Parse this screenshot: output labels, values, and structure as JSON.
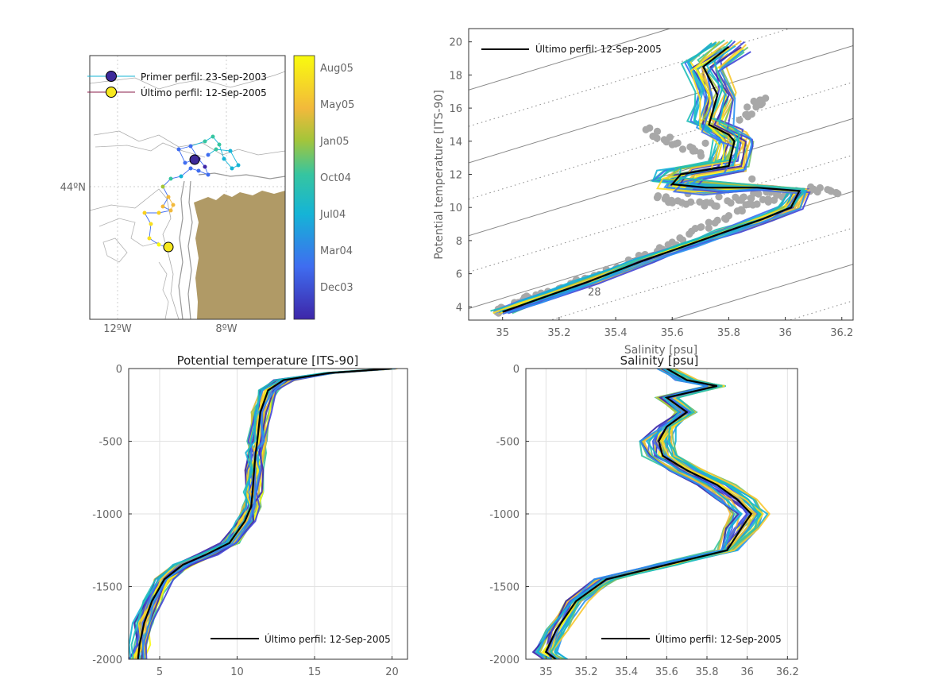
{
  "map": {
    "lon_ticks": [
      "12ºW",
      "8ºW"
    ],
    "lat_ticks": [
      "44ºN"
    ],
    "legend": {
      "first": "Primer perfil: 23-Sep-2003",
      "last": "Último perfil: 12-Sep-2005"
    },
    "colorbar_ticks": [
      "Aug05",
      "May05",
      "Jan05",
      "Oct04",
      "Jul04",
      "Mar04",
      "Dec03"
    ],
    "colors": {
      "land": "#b09a66",
      "coast": "#999999",
      "first_marker": "#3d2a9a",
      "last_marker": "#f7e81e"
    }
  },
  "chart_data": [
    {
      "type": "scatter",
      "name": "ts-diagram",
      "title": "",
      "xlabel": "Salinity [psu]",
      "ylabel": "Potential temperature [ITS-90]",
      "xlim": [
        34.88,
        36.24
      ],
      "ylim": [
        3.2,
        20.8
      ],
      "xticks": [
        35,
        35.2,
        35.4,
        35.6,
        35.8,
        36,
        36.2
      ],
      "yticks": [
        4,
        6,
        8,
        10,
        12,
        14,
        16,
        18,
        20
      ],
      "isopycnal_label": "28",
      "legend": "Último perfil: 12-Sep-2005",
      "last_profile": {
        "salinity": [
          35.0,
          35.1,
          35.3,
          35.5,
          35.65,
          35.8,
          35.92,
          36.02,
          36.05,
          35.9,
          35.72,
          35.6,
          35.63,
          35.8,
          35.82,
          35.8,
          35.73,
          35.76,
          35.71,
          35.8
        ],
        "theta": [
          3.7,
          4.3,
          5.5,
          6.8,
          7.7,
          8.6,
          9.3,
          10.0,
          11.0,
          11.2,
          11.2,
          11.4,
          12.0,
          12.5,
          14.0,
          14.4,
          15.0,
          16.8,
          18.5,
          19.7
        ]
      },
      "background_points": {
        "salinity": [
          34.98,
          35.05,
          35.12,
          35.2,
          35.3,
          35.4,
          35.5,
          35.6,
          35.7,
          35.8,
          35.9,
          36.0,
          36.1,
          36.18,
          35.55,
          35.62,
          35.75,
          35.85,
          35.95,
          35.52,
          35.6,
          35.7,
          35.86,
          35.9,
          35.93
        ],
        "theta": [
          3.7,
          4.2,
          4.7,
          5.1,
          5.7,
          6.3,
          7.1,
          7.9,
          8.8,
          9.5,
          10.2,
          10.8,
          11.1,
          10.9,
          10.7,
          10.4,
          10.1,
          10.6,
          11.0,
          14.8,
          13.8,
          13.3,
          15.6,
          16.3,
          16.6
        ]
      }
    },
    {
      "type": "line",
      "name": "temperature-profile",
      "title": "Potential temperature [ITS-90]",
      "xlim": [
        3,
        21
      ],
      "ylim": [
        -2000,
        0
      ],
      "xticks": [
        5,
        10,
        15,
        20
      ],
      "yticks": [
        0,
        -500,
        -1000,
        -1500,
        -2000
      ],
      "legend": "Último perfil: 12-Sep-2005",
      "last_profile": {
        "x": [
          20.0,
          16.0,
          13.0,
          12.0,
          11.5,
          11.3,
          11.2,
          11.1,
          11.0,
          10.9,
          10.5,
          9.5,
          8.0,
          6.5,
          5.3,
          4.5,
          4.0,
          3.7,
          3.6
        ],
        "depth": [
          0,
          -30,
          -80,
          -150,
          -300,
          -500,
          -580,
          -700,
          -850,
          -950,
          -1050,
          -1200,
          -1280,
          -1350,
          -1450,
          -1600,
          -1750,
          -1900,
          -2000
        ]
      }
    },
    {
      "type": "line",
      "name": "salinity-profile",
      "title": "Salinity [psu]",
      "xlim": [
        34.9,
        36.25
      ],
      "ylim": [
        -2000,
        0
      ],
      "xticks": [
        35,
        35.2,
        35.4,
        35.6,
        35.8,
        36,
        36.2
      ],
      "yticks": [
        0,
        -500,
        -1000,
        -1500,
        -2000
      ],
      "legend": "Último perfil: 12-Sep-2005",
      "last_profile": {
        "x": [
          35.6,
          35.7,
          35.85,
          35.6,
          35.7,
          35.6,
          35.56,
          35.58,
          35.7,
          35.85,
          35.95,
          36.02,
          35.97,
          35.9,
          35.6,
          35.3,
          35.15,
          35.05,
          35.0,
          35.05
        ],
        "depth": [
          0,
          -80,
          -120,
          -200,
          -300,
          -400,
          -500,
          -600,
          -700,
          -800,
          -900,
          -1000,
          -1100,
          -1250,
          -1350,
          -1450,
          -1600,
          -1800,
          -1950,
          -2000
        ]
      }
    }
  ]
}
